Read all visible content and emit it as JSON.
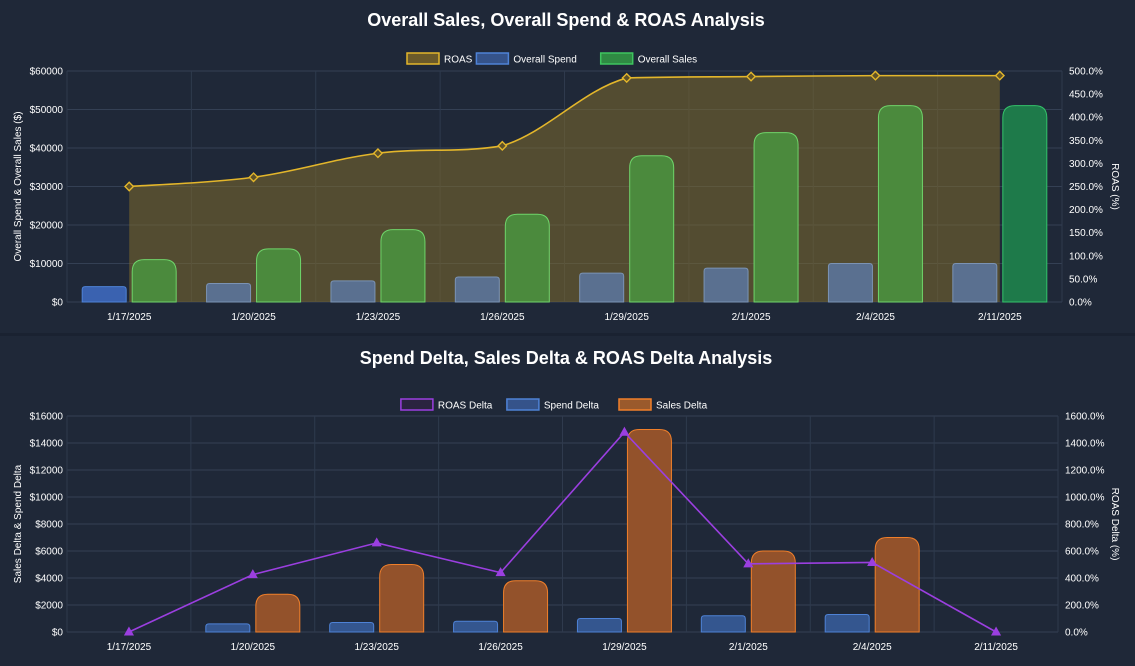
{
  "charts": [
    {
      "title": "Overall Sales, Overall Spend & ROAS Analysis",
      "categories": [
        "1/17/2025",
        "1/20/2025",
        "1/23/2025",
        "1/26/2025",
        "1/29/2025",
        "2/1/2025",
        "2/4/2025",
        "2/11/2025"
      ],
      "left_axis": {
        "label": "Overall Spend & Overall Sales ($)",
        "min": 0,
        "max": 60000,
        "step": 10000,
        "prefix": "$",
        "ticks": [
          "$0",
          "$10000",
          "$20000",
          "$30000",
          "$40000",
          "$50000",
          "$60000"
        ]
      },
      "right_axis": {
        "label": "ROAS (%)",
        "min": 0,
        "max": 500,
        "step": 50,
        "ticks": [
          "0.0%",
          "50.0%",
          "100.0%",
          "150.0%",
          "200.0%",
          "250.0%",
          "300.0%",
          "350.0%",
          "400.0%",
          "450.0%",
          "500.0%"
        ]
      },
      "legend": [
        {
          "name": "ROAS",
          "color": "#e3b62b",
          "fill": "#6b5a2a"
        },
        {
          "name": "Overall Spend",
          "color": "#4e82d6",
          "fill": "#35538a"
        },
        {
          "name": "Overall Sales",
          "color": "#3ec45f",
          "fill": "#2f8a43"
        }
      ]
    },
    {
      "title": "Spend Delta, Sales Delta & ROAS Delta Analysis",
      "categories": [
        "1/17/2025",
        "1/20/2025",
        "1/23/2025",
        "1/26/2025",
        "1/29/2025",
        "2/1/2025",
        "2/4/2025",
        "2/11/2025"
      ],
      "left_axis": {
        "label": "Sales Delta & Spend Delta",
        "min": 0,
        "max": 16000,
        "step": 2000,
        "ticks": [
          "$0",
          "$2000",
          "$4000",
          "$6000",
          "$8000",
          "$10000",
          "$12000",
          "$14000",
          "$16000"
        ]
      },
      "right_axis": {
        "label": "ROAS Delta (%)",
        "min": 0,
        "max": 1600,
        "step": 200,
        "ticks": [
          "0.0%",
          "200.0%",
          "400.0%",
          "600.0%",
          "800.0%",
          "1000.0%",
          "1200.0%",
          "1400.0%",
          "1600.0%"
        ]
      },
      "legend": [
        {
          "name": "ROAS Delta",
          "color": "#9b3fe0",
          "fill": "#2a2340"
        },
        {
          "name": "Spend Delta",
          "color": "#4e82d6",
          "fill": "#35538a"
        },
        {
          "name": "Sales Delta",
          "color": "#f07f2a",
          "fill": "#9a5a2c"
        }
      ]
    }
  ],
  "chart_data": [
    {
      "type": "bar",
      "title": "Overall Sales, Overall Spend & ROAS Analysis",
      "categories": [
        "1/17/2025",
        "1/20/2025",
        "1/23/2025",
        "1/26/2025",
        "1/29/2025",
        "2/1/2025",
        "2/4/2025",
        "2/11/2025"
      ],
      "xlabel": "",
      "ylabel": "Overall Spend & Overall Sales ($)",
      "y2label": "ROAS (%)",
      "ylim": [
        0,
        60000
      ],
      "y2lim": [
        0,
        500
      ],
      "grid": true,
      "legend_position": "top-center",
      "series": [
        {
          "name": "ROAS",
          "type": "area-line",
          "axis": "right",
          "values": [
            250,
            270,
            322,
            338,
            485,
            488,
            490,
            490
          ]
        },
        {
          "name": "Overall Spend",
          "type": "bar",
          "axis": "left",
          "values": [
            4000,
            4800,
            5500,
            6500,
            7500,
            8800,
            10000,
            10000
          ]
        },
        {
          "name": "Overall Sales",
          "type": "bar",
          "axis": "left",
          "values": [
            11000,
            13800,
            18800,
            22800,
            38000,
            44000,
            51000,
            51000
          ]
        }
      ]
    },
    {
      "type": "bar",
      "title": "Spend Delta, Sales Delta & ROAS Delta Analysis",
      "categories": [
        "1/17/2025",
        "1/20/2025",
        "1/23/2025",
        "1/26/2025",
        "1/29/2025",
        "2/1/2025",
        "2/4/2025",
        "2/11/2025"
      ],
      "xlabel": "",
      "ylabel": "Sales Delta & Spend Delta",
      "y2label": "ROAS Delta (%)",
      "ylim": [
        0,
        16000
      ],
      "y2lim": [
        0,
        1600
      ],
      "grid": true,
      "legend_position": "top-center",
      "series": [
        {
          "name": "ROAS Delta",
          "type": "line",
          "axis": "right",
          "values": [
            0,
            425,
            660,
            440,
            1480,
            505,
            515,
            0
          ]
        },
        {
          "name": "Spend Delta",
          "type": "bar",
          "axis": "left",
          "values": [
            0,
            600,
            700,
            800,
            1000,
            1200,
            1300,
            0
          ]
        },
        {
          "name": "Sales Delta",
          "type": "bar",
          "axis": "left",
          "values": [
            0,
            2800,
            5000,
            3800,
            15000,
            6000,
            7000,
            0
          ]
        }
      ]
    }
  ]
}
